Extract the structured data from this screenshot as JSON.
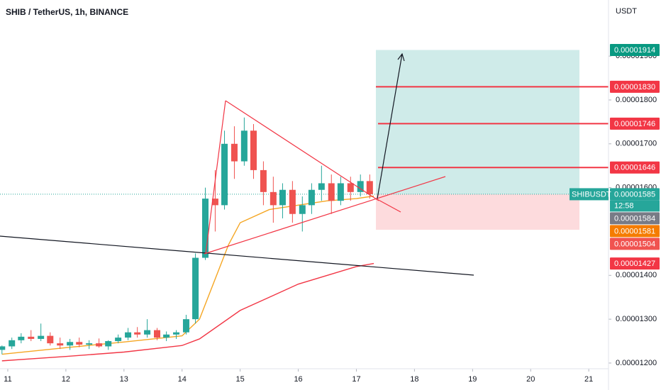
{
  "chart_data": {
    "type": "candlestick",
    "title": "SHIB / TetherUS, 1h, BINANCE",
    "y_label": "USDT",
    "xlim": [
      10.866,
      21.34
    ],
    "xticks": [
      11,
      12,
      13,
      14,
      15,
      16,
      17,
      18,
      19,
      20,
      21
    ],
    "ylim": [
      1.187e-05,
      2.028e-05
    ],
    "yticks": [
      {
        "value": 1.2e-05,
        "label": "0.00001200"
      },
      {
        "value": 1.3e-05,
        "label": "0.00001300"
      },
      {
        "value": 1.4e-05,
        "label": "0.00001400"
      },
      {
        "value": 1.6e-05,
        "label": "0.00001600"
      },
      {
        "value": 1.7e-05,
        "label": "0.00001700"
      },
      {
        "value": 1.8e-05,
        "label": "0.00001800"
      },
      {
        "value": 1.9e-05,
        "label": "0.00001900"
      }
    ],
    "up_color": "#26a69a",
    "down_color": "#ef5350",
    "candles": {
      "x": [
        10.9,
        11.07,
        11.23,
        11.4,
        11.57,
        11.73,
        11.9,
        12.07,
        12.23,
        12.4,
        12.57,
        12.73,
        12.9,
        13.07,
        13.23,
        13.4,
        13.57,
        13.73,
        13.9,
        14.07,
        14.23,
        14.4,
        14.57,
        14.73,
        14.9,
        15.07,
        15.23,
        15.4,
        15.57,
        15.73,
        15.9,
        16.07,
        16.23,
        16.4,
        16.57,
        16.73,
        16.9,
        17.07,
        17.23
      ],
      "open": [
        1.23e-05,
        1.238e-05,
        1.252e-05,
        1.26e-05,
        1.255e-05,
        1.262e-05,
        1.245e-05,
        1.24e-05,
        1.248e-05,
        1.242e-05,
        1.245e-05,
        1.238e-05,
        1.25e-05,
        1.258e-05,
        1.27e-05,
        1.265e-05,
        1.275e-05,
        1.258e-05,
        1.265e-05,
        1.27e-05,
        1.3e-05,
        1.44e-05,
        1.575e-05,
        1.56e-05,
        1.7e-05,
        1.66e-05,
        1.73e-05,
        1.64e-05,
        1.59e-05,
        1.56e-05,
        1.595e-05,
        1.54e-05,
        1.56e-05,
        1.595e-05,
        1.61e-05,
        1.57e-05,
        1.61e-05,
        1.59e-05,
        1.615e-05
      ],
      "high": [
        1.24e-05,
        1.258e-05,
        1.268e-05,
        1.275e-05,
        1.29e-05,
        1.27e-05,
        1.258e-05,
        1.255e-05,
        1.258e-05,
        1.252e-05,
        1.256e-05,
        1.252e-05,
        1.265e-05,
        1.28e-05,
        1.282e-05,
        1.3e-05,
        1.28e-05,
        1.272e-05,
        1.275e-05,
        1.31e-05,
        1.45e-05,
        1.6e-05,
        1.64e-05,
        1.73e-05,
        1.74e-05,
        1.76e-05,
        1.745e-05,
        1.66e-05,
        1.625e-05,
        1.61e-05,
        1.615e-05,
        1.58e-05,
        1.61e-05,
        1.65e-05,
        1.63e-05,
        1.625e-05,
        1.625e-05,
        1.63e-05,
        1.63e-05
      ],
      "low": [
        1.22e-05,
        1.232e-05,
        1.245e-05,
        1.25e-05,
        1.25e-05,
        1.24e-05,
        1.232e-05,
        1.23e-05,
        1.236e-05,
        1.232e-05,
        1.235e-05,
        1.23e-05,
        1.245e-05,
        1.252e-05,
        1.258e-05,
        1.258e-05,
        1.252e-05,
        1.25e-05,
        1.255e-05,
        1.265e-05,
        1.29e-05,
        1.435e-05,
        1.5e-05,
        1.55e-05,
        1.62e-05,
        1.65e-05,
        1.62e-05,
        1.56e-05,
        1.52e-05,
        1.53e-05,
        1.52e-05,
        1.5e-05,
        1.54e-05,
        1.57e-05,
        1.54e-05,
        1.56e-05,
        1.57e-05,
        1.58e-05,
        1.575e-05
      ],
      "close": [
        1.238e-05,
        1.252e-05,
        1.26e-05,
        1.255e-05,
        1.262e-05,
        1.245e-05,
        1.24e-05,
        1.248e-05,
        1.242e-05,
        1.245e-05,
        1.238e-05,
        1.25e-05,
        1.258e-05,
        1.27e-05,
        1.265e-05,
        1.275e-05,
        1.258e-05,
        1.265e-05,
        1.27e-05,
        1.3e-05,
        1.44e-05,
        1.575e-05,
        1.56e-05,
        1.7e-05,
        1.66e-05,
        1.73e-05,
        1.64e-05,
        1.59e-05,
        1.56e-05,
        1.595e-05,
        1.54e-05,
        1.56e-05,
        1.595e-05,
        1.61e-05,
        1.57e-05,
        1.61e-05,
        1.59e-05,
        1.615e-05,
        1.585e-05
      ]
    },
    "series": [
      {
        "color": "#f5a623",
        "x": [
          10.9,
          12,
          13,
          14,
          14.3,
          14.8,
          15,
          15.5,
          16,
          16.5,
          17,
          17.3
        ],
        "values": [
          1.22e-05,
          1.235e-05,
          1.248e-05,
          1.262e-05,
          1.3e-05,
          1.47e-05,
          1.52e-05,
          1.55e-05,
          1.56e-05,
          1.57e-05,
          1.575e-05,
          1.581e-05
        ]
      },
      {
        "color": "#f23645",
        "x": [
          10.9,
          12,
          13,
          14,
          14.3,
          15,
          15.5,
          16,
          16.5,
          17,
          17.3
        ],
        "values": [
          1.205e-05,
          1.215e-05,
          1.225e-05,
          1.24e-05,
          1.255e-05,
          1.32e-05,
          1.35e-05,
          1.38e-05,
          1.4e-05,
          1.42e-05,
          1.427e-05
        ]
      }
    ],
    "price_labels": [
      {
        "value": 1.914e-05,
        "label": "0.00001914",
        "color": "#089981"
      },
      {
        "value": 1.83e-05,
        "label": "0.00001830",
        "color": "#f23645"
      },
      {
        "value": 1.746e-05,
        "label": "0.00001746",
        "color": "#f23645"
      },
      {
        "value": 1.646e-05,
        "label": "0.00001646",
        "color": "#f23645"
      },
      {
        "value": 1.585e-05,
        "label": "0.00001585",
        "color": "#26a69a",
        "tag": "SHIBUSDT",
        "time": "12:58"
      },
      {
        "value": 1.584e-05,
        "label": "0.00001584",
        "color": "#787b86"
      },
      {
        "value": 1.581e-05,
        "label": "0.00001581",
        "color": "#f57c00"
      },
      {
        "value": 1.504e-05,
        "label": "0.00001504",
        "color": "#f05350"
      },
      {
        "value": 1.427e-05,
        "label": "0.00001427",
        "color": "#f23645"
      }
    ]
  }
}
